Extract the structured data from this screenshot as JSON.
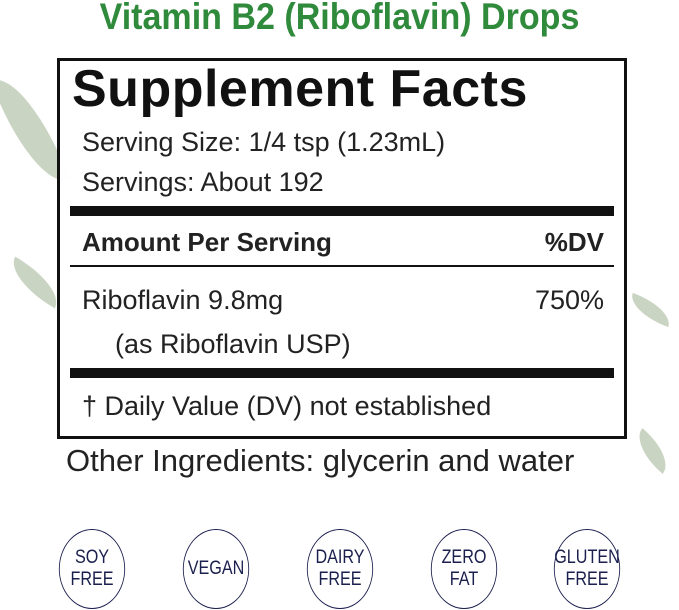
{
  "header": {
    "title": "Vitamin B2 (Riboflavin) Drops",
    "title_color": "#2f8a3b"
  },
  "facts": {
    "heading": "Supplement Facts",
    "serving_size": "Serving Size: 1/4 tsp (1.23mL)",
    "servings": "Servings: About 192",
    "amount_header": "Amount Per Serving",
    "dv_header": "%DV",
    "ingredient": "Riboflavin 9.8mg",
    "ingredient_sub": "(as Riboflavin USP)",
    "ingredient_dv": "750%",
    "footnote": "† Daily Value (DV) not established"
  },
  "other_ingredients": "Other Ingredients: glycerin and water",
  "badges": [
    {
      "line1": "SOY",
      "line2": "FREE"
    },
    {
      "line1": "VEGAN",
      "line2": ""
    },
    {
      "line1": "DAIRY",
      "line2": "FREE"
    },
    {
      "line1": "ZERO",
      "line2": "FAT"
    },
    {
      "line1": "GLUTEN",
      "line2": "FREE"
    }
  ],
  "badge_color": "#1b1f4d"
}
